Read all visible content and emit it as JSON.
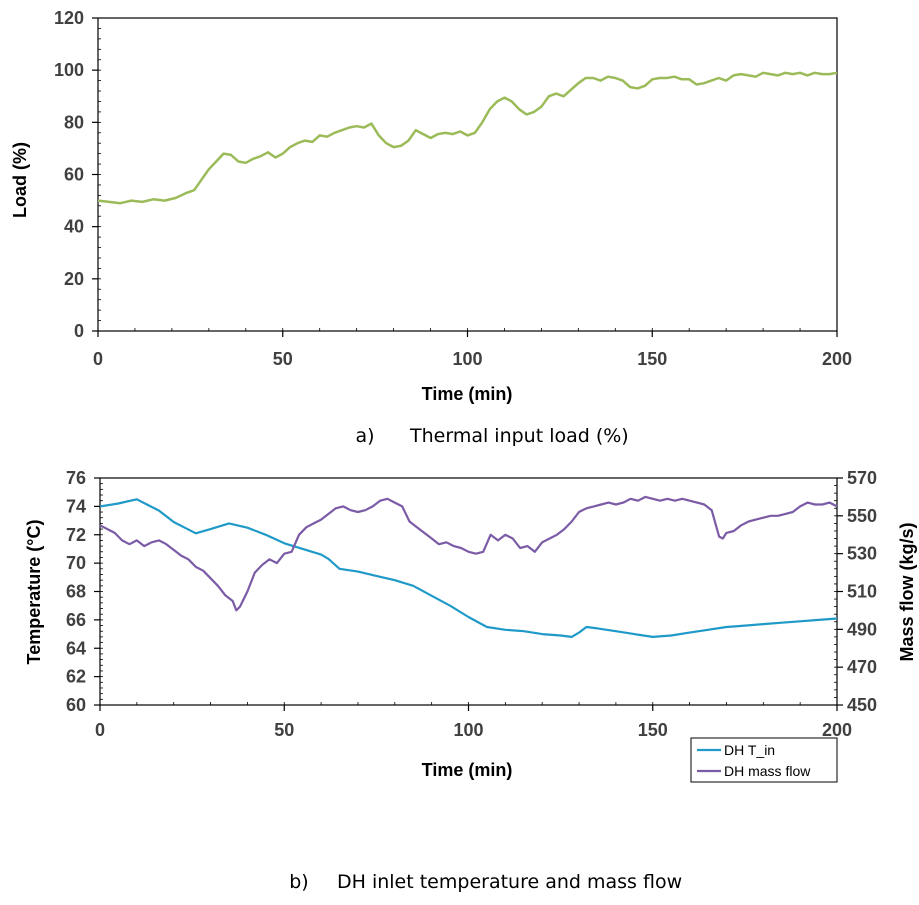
{
  "chart_data": [
    {
      "type": "line",
      "caption_prefix": "a)",
      "caption": "Thermal input load (%)",
      "xlabel": "Time (min)",
      "ylabel": "Load (%)",
      "xlim": [
        0,
        200
      ],
      "ylim": [
        0,
        120
      ],
      "xticks": [
        "0",
        "50",
        "100",
        "150",
        "200"
      ],
      "yticks": [
        "0",
        "20",
        "40",
        "60",
        "80",
        "100",
        "120"
      ],
      "grid": false,
      "series": [
        {
          "color": "#9bbb59",
          "x": [
            0,
            3,
            6,
            9,
            12,
            15,
            18,
            21,
            24,
            26,
            28,
            30,
            32,
            34,
            36,
            38,
            40,
            42,
            44,
            46,
            48,
            50,
            52,
            54,
            56,
            58,
            60,
            62,
            64,
            66,
            68,
            70,
            72,
            74,
            76,
            78,
            80,
            82,
            84,
            86,
            88,
            90,
            92,
            94,
            96,
            98,
            100,
            102,
            104,
            106,
            108,
            110,
            112,
            114,
            116,
            118,
            120,
            122,
            124,
            126,
            128,
            130,
            132,
            134,
            136,
            138,
            140,
            142,
            144,
            146,
            148,
            150,
            152,
            154,
            156,
            158,
            160,
            162,
            164,
            166,
            168,
            170,
            172,
            174,
            176,
            178,
            180,
            182,
            184,
            186,
            188,
            190,
            192,
            194,
            196,
            198,
            200
          ],
          "y": [
            50,
            49.5,
            49,
            50,
            49.5,
            50.5,
            50,
            51,
            53,
            54,
            58,
            62,
            65,
            68,
            67.5,
            65,
            64.5,
            66,
            67,
            68.5,
            66.5,
            68,
            70.5,
            72,
            73,
            72.5,
            75,
            74.5,
            76,
            77,
            78,
            78.5,
            78,
            79.5,
            75,
            72,
            70.5,
            71,
            73,
            77,
            75.5,
            74,
            75.5,
            76,
            75.5,
            76.5,
            75,
            76,
            80,
            85,
            88,
            89.5,
            88,
            85,
            83,
            84,
            86,
            90,
            91,
            90,
            92.5,
            95,
            97,
            97,
            96,
            97.5,
            97,
            96,
            93.5,
            93,
            94,
            96.5,
            97,
            97,
            97.5,
            96.5,
            96.5,
            94.5,
            95,
            96,
            97,
            96,
            98,
            98.5,
            98,
            97.5,
            99,
            98.5,
            98,
            99,
            98.5,
            99,
            98,
            99,
            98.5,
            98.5,
            99
          ]
        }
      ]
    },
    {
      "type": "line",
      "caption_prefix": "b)",
      "caption": "DH inlet temperature and mass flow",
      "xlabel": "Time (min)",
      "ylabel": "Temperature (°C)",
      "ylabel_right": "Mass flow (kg/s)",
      "xlim": [
        0,
        200
      ],
      "ylim": [
        60,
        76
      ],
      "ylim_right": [
        450,
        570
      ],
      "xticks": [
        "0",
        "50",
        "100",
        "150",
        "200"
      ],
      "yticks": [
        "60",
        "62",
        "64",
        "66",
        "68",
        "70",
        "72",
        "74",
        "76"
      ],
      "yticks_right": [
        "450",
        "470",
        "490",
        "510",
        "530",
        "550",
        "570"
      ],
      "grid": false,
      "legend_position": "bottom-right",
      "series": [
        {
          "name": "DH T_in",
          "axis": "left",
          "color": "#1f9ac8",
          "x": [
            0,
            5,
            10,
            13,
            16,
            18,
            20,
            23,
            26,
            30,
            35,
            40,
            45,
            50,
            55,
            60,
            62,
            65,
            70,
            75,
            80,
            85,
            90,
            95,
            100,
            105,
            110,
            115,
            120,
            125,
            128,
            130,
            132,
            135,
            140,
            145,
            150,
            155,
            160,
            165,
            170,
            175,
            180,
            185,
            190,
            195,
            200
          ],
          "y": [
            74.0,
            74.2,
            74.5,
            74.1,
            73.7,
            73.3,
            72.9,
            72.5,
            72.1,
            72.4,
            72.8,
            72.5,
            72.0,
            71.4,
            71.0,
            70.6,
            70.3,
            69.6,
            69.4,
            69.1,
            68.8,
            68.4,
            67.7,
            67.0,
            66.2,
            65.5,
            65.3,
            65.2,
            65.0,
            64.9,
            64.8,
            65.1,
            65.5,
            65.4,
            65.2,
            65.0,
            64.8,
            64.9,
            65.1,
            65.3,
            65.5,
            65.6,
            65.7,
            65.8,
            65.9,
            66.0,
            66.1
          ]
        },
        {
          "name": "DH mass flow",
          "axis": "right",
          "color": "#7b5ba6",
          "x": [
            0,
            2,
            4,
            6,
            8,
            10,
            12,
            14,
            16,
            18,
            20,
            22,
            24,
            26,
            28,
            30,
            32,
            34,
            36,
            37,
            38,
            40,
            42,
            44,
            46,
            48,
            50,
            52,
            54,
            56,
            58,
            60,
            62,
            64,
            66,
            68,
            70,
            72,
            74,
            76,
            78,
            80,
            82,
            84,
            86,
            88,
            90,
            92,
            94,
            96,
            98,
            100,
            102,
            104,
            106,
            108,
            110,
            112,
            114,
            116,
            118,
            120,
            122,
            124,
            126,
            128,
            130,
            132,
            134,
            136,
            138,
            140,
            142,
            144,
            146,
            148,
            150,
            152,
            154,
            156,
            158,
            160,
            162,
            164,
            166,
            168,
            169,
            170,
            172,
            174,
            176,
            178,
            180,
            182,
            184,
            186,
            188,
            190,
            192,
            194,
            196,
            198,
            200
          ],
          "y": [
            545,
            543,
            541,
            537,
            535,
            537,
            534,
            536,
            537,
            535,
            532,
            529,
            527,
            523,
            521,
            517,
            513,
            508,
            505,
            500,
            502,
            510,
            520,
            524,
            527,
            525,
            530,
            531,
            540,
            544,
            546,
            548,
            551,
            554,
            555,
            553,
            552,
            553,
            555,
            558,
            559,
            557,
            555,
            547,
            544,
            541,
            538,
            535,
            536,
            534,
            533,
            531,
            530,
            531,
            540,
            537,
            540,
            538,
            533,
            534,
            531,
            536,
            538,
            540,
            543,
            547,
            552,
            554,
            555,
            556,
            557,
            556,
            557,
            559,
            558,
            560,
            559,
            558,
            559,
            558,
            559,
            558,
            557,
            556,
            553,
            539,
            538,
            541,
            542,
            545,
            547,
            548,
            549,
            550,
            550,
            551,
            552,
            555,
            557,
            556,
            556,
            557,
            555
          ]
        }
      ]
    }
  ]
}
